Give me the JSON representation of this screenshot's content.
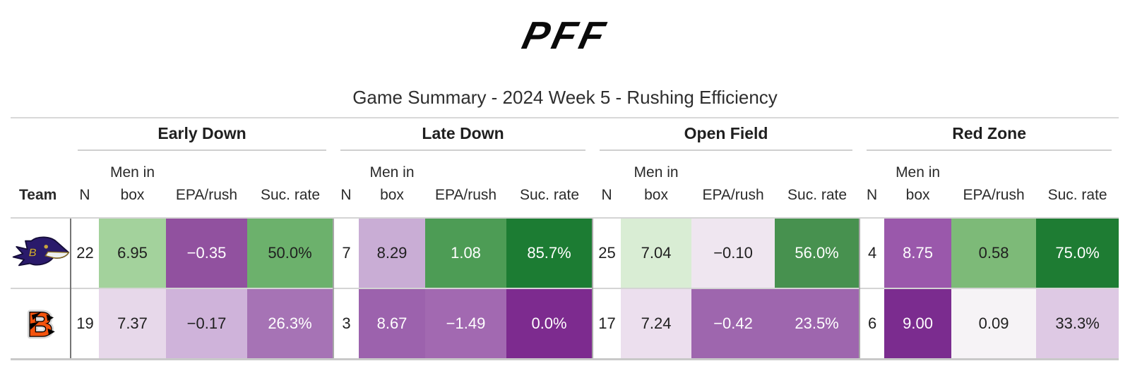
{
  "header": {
    "logo_text": "PFF",
    "title": "Game Summary - 2024 Week 5 - Rushing Efficiency"
  },
  "table": {
    "team_col_label": "Team",
    "groups": [
      {
        "label": "Early Down"
      },
      {
        "label": "Late Down"
      },
      {
        "label": "Open Field"
      },
      {
        "label": "Red Zone"
      }
    ],
    "sub_headers": [
      "N",
      "Men in box",
      "EPA/rush",
      "Suc. rate"
    ],
    "text_colors": {
      "dark": "#1f1f1f",
      "light": "#ffffff"
    },
    "rows": [
      {
        "team": "Baltimore Ravens",
        "logo": "ravens",
        "stats": [
          {
            "n": "22",
            "box": {
              "v": "6.95",
              "bg": "#a3d29c",
              "fg": "dark"
            },
            "epa": {
              "v": "−0.35",
              "bg": "#91519f",
              "fg": "light"
            },
            "suc": {
              "v": "50.0%",
              "bg": "#6cb16c",
              "fg": "dark"
            }
          },
          {
            "n": "7",
            "box": {
              "v": "8.29",
              "bg": "#c9add5",
              "fg": "dark"
            },
            "epa": {
              "v": "1.08",
              "bg": "#4d9c55",
              "fg": "light"
            },
            "suc": {
              "v": "85.7%",
              "bg": "#1c7c33",
              "fg": "light"
            }
          },
          {
            "n": "25",
            "box": {
              "v": "7.04",
              "bg": "#d9edd4",
              "fg": "dark"
            },
            "epa": {
              "v": "−0.10",
              "bg": "#efe6f0",
              "fg": "dark"
            },
            "suc": {
              "v": "56.0%",
              "bg": "#47914f",
              "fg": "light"
            }
          },
          {
            "n": "4",
            "box": {
              "v": "8.75",
              "bg": "#9a58ab",
              "fg": "light"
            },
            "epa": {
              "v": "0.58",
              "bg": "#7dba78",
              "fg": "dark"
            },
            "suc": {
              "v": "75.0%",
              "bg": "#1e7c33",
              "fg": "light"
            }
          }
        ]
      },
      {
        "team": "Cincinnati Bengals",
        "logo": "bengals",
        "stats": [
          {
            "n": "19",
            "box": {
              "v": "7.37",
              "bg": "#e7d8ea",
              "fg": "dark"
            },
            "epa": {
              "v": "−0.17",
              "bg": "#cfb3da",
              "fg": "dark"
            },
            "suc": {
              "v": "26.3%",
              "bg": "#a673b5",
              "fg": "light"
            }
          },
          {
            "n": "3",
            "box": {
              "v": "8.67",
              "bg": "#9c62ad",
              "fg": "light"
            },
            "epa": {
              "v": "−1.49",
              "bg": "#a269b1",
              "fg": "light"
            },
            "suc": {
              "v": "0.0%",
              "bg": "#7d2b8f",
              "fg": "light"
            }
          },
          {
            "n": "17",
            "box": {
              "v": "7.24",
              "bg": "#ecdfee",
              "fg": "dark"
            },
            "epa": {
              "v": "−0.42",
              "bg": "#9e66ae",
              "fg": "light"
            },
            "suc": {
              "v": "23.5%",
              "bg": "#9e66ae",
              "fg": "light"
            }
          },
          {
            "n": "6",
            "box": {
              "v": "9.00",
              "bg": "#7b2c8f",
              "fg": "light"
            },
            "epa": {
              "v": "0.09",
              "bg": "#f6f3f6",
              "fg": "dark"
            },
            "suc": {
              "v": "33.3%",
              "bg": "#dec9e4",
              "fg": "dark"
            }
          }
        ]
      }
    ]
  },
  "chart_data": {
    "type": "table",
    "title": "Game Summary - 2024 Week 5 - Rushing Efficiency",
    "column_groups": [
      "Early Down",
      "Late Down",
      "Open Field",
      "Red Zone"
    ],
    "columns_per_group": [
      "N",
      "Men in box",
      "EPA/rush",
      "Suc. rate"
    ],
    "color_scale": "diverging heatmap: purple = poor, white = neutral, green = good",
    "rows": [
      {
        "team": "Baltimore Ravens",
        "early_down": {
          "n": 22,
          "men_in_box": 6.95,
          "epa_per_rush": -0.35,
          "success_rate_pct": 50.0
        },
        "late_down": {
          "n": 7,
          "men_in_box": 8.29,
          "epa_per_rush": 1.08,
          "success_rate_pct": 85.7
        },
        "open_field": {
          "n": 25,
          "men_in_box": 7.04,
          "epa_per_rush": -0.1,
          "success_rate_pct": 56.0
        },
        "red_zone": {
          "n": 4,
          "men_in_box": 8.75,
          "epa_per_rush": 0.58,
          "success_rate_pct": 75.0
        }
      },
      {
        "team": "Cincinnati Bengals",
        "early_down": {
          "n": 19,
          "men_in_box": 7.37,
          "epa_per_rush": -0.17,
          "success_rate_pct": 26.3
        },
        "late_down": {
          "n": 3,
          "men_in_box": 8.67,
          "epa_per_rush": -1.49,
          "success_rate_pct": 0.0
        },
        "open_field": {
          "n": 17,
          "men_in_box": 7.24,
          "epa_per_rush": -0.42,
          "success_rate_pct": 23.5
        },
        "red_zone": {
          "n": 6,
          "men_in_box": 9.0,
          "epa_per_rush": 0.09,
          "success_rate_pct": 33.3
        }
      }
    ]
  }
}
